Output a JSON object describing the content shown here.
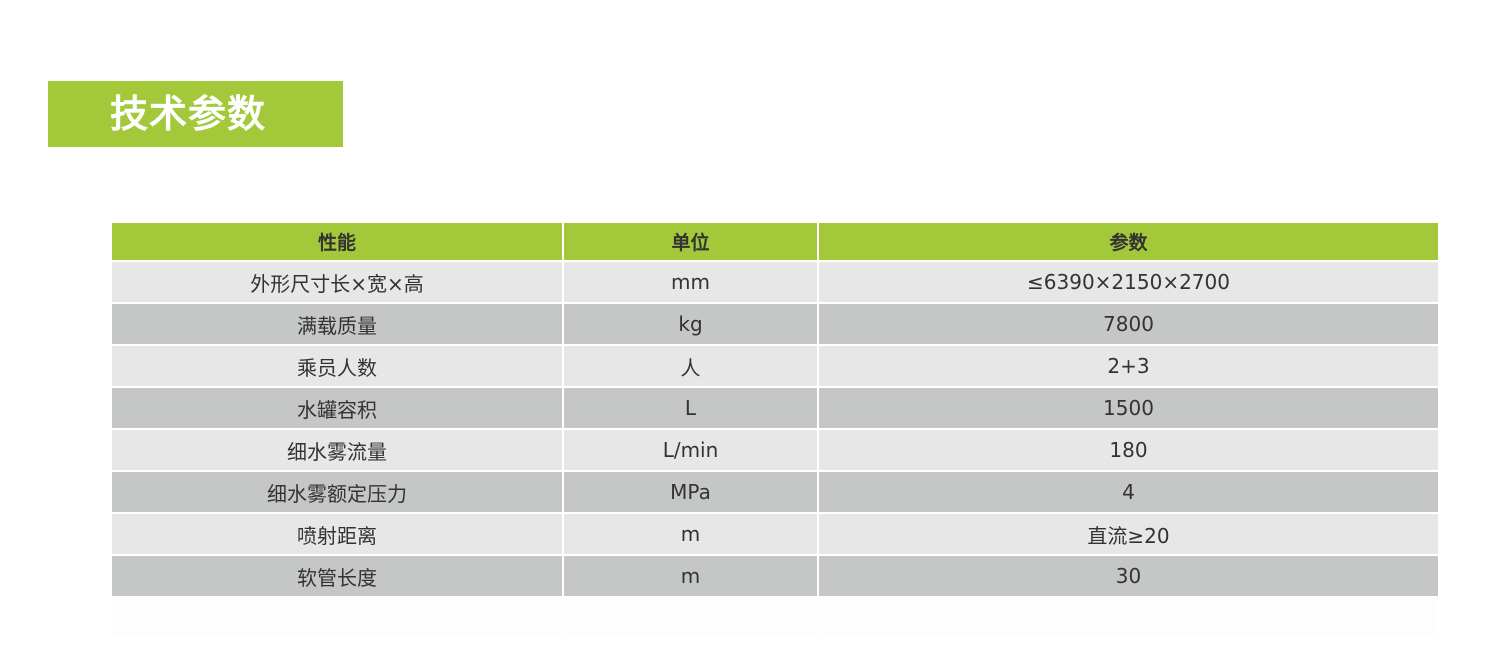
{
  "title": "技术参数",
  "colors": {
    "accent": "#a3c93a",
    "row_light": "#e8e7e7",
    "row_dark": "#c5c6c6"
  },
  "table": {
    "headers": [
      "性能",
      "单位",
      "参数"
    ],
    "rows": [
      [
        "外形尺寸长×宽×高",
        "mm",
        "≤6390×2150×2700"
      ],
      [
        "满载质量",
        "kg",
        "7800"
      ],
      [
        "乘员人数",
        "人",
        "2+3"
      ],
      [
        "水罐容积",
        "L",
        "1500"
      ],
      [
        "细水雾流量",
        "L/min",
        "180"
      ],
      [
        "细水雾额定压力",
        "MPa",
        "4"
      ],
      [
        "喷射距离",
        "m",
        "直流≥20"
      ],
      [
        "软管长度",
        "m",
        "30"
      ]
    ]
  }
}
